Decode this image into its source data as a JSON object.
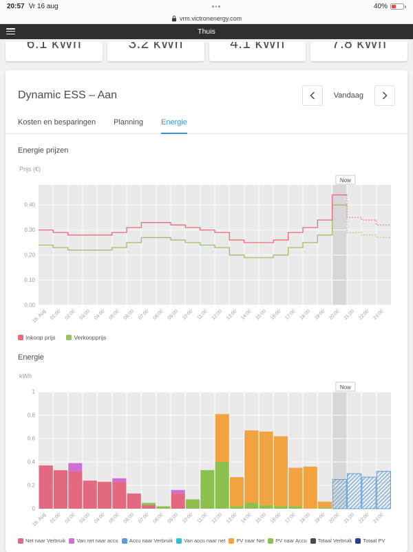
{
  "status_bar": {
    "time": "20:57",
    "date": "Vr 16 aug",
    "battery_percent": "40%"
  },
  "browser": {
    "url": "vrm.victronenergy.com"
  },
  "navbar": {
    "title": "Thuis"
  },
  "summary_cards": [
    {
      "value": "6.1 kWh"
    },
    {
      "value": "3.2 kWh"
    },
    {
      "value": "4.1 kWh"
    },
    {
      "value": "7.8 kWh"
    }
  ],
  "page": {
    "title": "Dynamic ESS – Aan",
    "date_nav_label": "Vandaag",
    "tabs": [
      {
        "label": "Kosten en besparingen",
        "active": false
      },
      {
        "label": "Planning",
        "active": false
      },
      {
        "label": "Energie",
        "active": true
      }
    ]
  },
  "chart_data": [
    {
      "type": "line",
      "step": true,
      "title": "Energie prijzen",
      "ylabel": "Prijs (€)",
      "background": "#eaeaea",
      "now_band_color": "#d7d7d7",
      "now_index": 20,
      "now_label": "Now",
      "ylim": [
        0,
        0.48
      ],
      "yticks": [
        0,
        0.1,
        0.2,
        0.3,
        0.4
      ],
      "ytick_labels": [
        "0.00",
        "0.10",
        "0.20",
        "0.30",
        "0.40"
      ],
      "x": [
        "16. Aug",
        "01:00",
        "02:00",
        "03:00",
        "04:00",
        "05:00",
        "06:00",
        "07:00",
        "08:00",
        "09:00",
        "10:00",
        "11:00",
        "12:00",
        "13:00",
        "14:00",
        "15:00",
        "16:00",
        "17:00",
        "18:00",
        "19:00",
        "20:00",
        "21:00",
        "22:00",
        "23:00"
      ],
      "series": [
        {
          "name": "Inkoop prijs",
          "color": "#ee6a7a",
          "values": [
            0.3,
            0.29,
            0.28,
            0.28,
            0.28,
            0.29,
            0.31,
            0.33,
            0.33,
            0.32,
            0.31,
            0.3,
            0.29,
            0.26,
            0.25,
            0.25,
            0.26,
            0.29,
            0.31,
            0.34,
            0.44,
            0.35,
            0.34,
            0.32
          ]
        },
        {
          "name": "Verkoopprijs",
          "color": "#9dc263",
          "values": [
            0.24,
            0.23,
            0.22,
            0.22,
            0.22,
            0.23,
            0.25,
            0.27,
            0.27,
            0.26,
            0.25,
            0.24,
            0.23,
            0.2,
            0.19,
            0.19,
            0.2,
            0.23,
            0.25,
            0.28,
            0.4,
            0.29,
            0.28,
            0.27
          ]
        }
      ],
      "legend": [
        {
          "name": "Inkoop prijs",
          "color": "#ee6a7a"
        },
        {
          "name": "Verkoopprijs",
          "color": "#9dc263"
        }
      ]
    },
    {
      "type": "bar",
      "title": "Energie",
      "ylabel": "kWh",
      "background": "#eaeaea",
      "now_band_color": "#d7d7d7",
      "now_index": 20,
      "now_label": "Now",
      "ylim": [
        0,
        1
      ],
      "yticks": [
        0,
        0.2,
        0.4,
        0.6,
        0.8,
        1
      ],
      "ytick_labels": [
        "0",
        "0.2",
        "0.4",
        "0.6",
        "0.8",
        "1"
      ],
      "x": [
        "16. Aug",
        "01:00",
        "02:00",
        "03:00",
        "04:00",
        "05:00",
        "06:00",
        "07:00",
        "08:00",
        "09:00",
        "10:00",
        "11:00",
        "12:00",
        "13:00",
        "14:00",
        "15:00",
        "16:00",
        "17:00",
        "18:00",
        "19:00",
        "20:00",
        "21:00",
        "22:00",
        "23:00"
      ],
      "stack_order": [
        0,
        1,
        2,
        3,
        5,
        4
      ],
      "series": [
        {
          "name": "Net naar Verbruik",
          "color": "#e2697f",
          "values": [
            0.37,
            0.33,
            0.32,
            0.24,
            0.23,
            0.23,
            0.13,
            0.03,
            0,
            0.13,
            0,
            0,
            0,
            0,
            0,
            0,
            0,
            0,
            0,
            0,
            0,
            0,
            0,
            0
          ]
        },
        {
          "name": "Van net naar accu",
          "color": "#cd6fd4",
          "values": [
            0,
            0,
            0.07,
            0,
            0,
            0.03,
            0,
            0,
            0,
            0.03,
            0,
            0,
            0,
            0,
            0,
            0,
            0,
            0,
            0,
            0,
            0,
            0,
            0,
            0
          ]
        },
        {
          "name": "Accu naar Verbruik",
          "color": "#5e9fd6",
          "values": [
            0,
            0,
            0,
            0,
            0,
            0,
            0,
            0,
            0,
            0,
            0,
            0,
            0,
            0,
            0,
            0,
            0,
            0,
            0,
            0,
            0.25,
            0.3,
            0.27,
            0.32
          ]
        },
        {
          "name": "Van accu naar net",
          "color": "#2dbfd4",
          "values": [
            0,
            0,
            0,
            0,
            0,
            0,
            0,
            0,
            0,
            0,
            0,
            0,
            0,
            0,
            0,
            0,
            0,
            0,
            0,
            0,
            0,
            0,
            0,
            0
          ]
        },
        {
          "name": "PV naar Net",
          "color": "#f0a33f",
          "values": [
            0,
            0,
            0,
            0,
            0,
            0,
            0,
            0,
            0,
            0,
            0,
            0,
            0.41,
            0.25,
            0.62,
            0.63,
            0.6,
            0.33,
            0.36,
            0.05,
            0,
            0,
            0,
            0
          ]
        },
        {
          "name": "PV naar Accu",
          "color": "#8cc152",
          "values": [
            0,
            0,
            0,
            0,
            0,
            0,
            0,
            0.02,
            0.02,
            0,
            0.08,
            0.33,
            0.4,
            0.02,
            0.05,
            0.03,
            0.02,
            0.02,
            0,
            0.01,
            0,
            0,
            0,
            0
          ]
        }
      ],
      "legend": [
        {
          "name": "Net naar Verbruik",
          "color": "#e2697f"
        },
        {
          "name": "Van net naar accu",
          "color": "#cd6fd4"
        },
        {
          "name": "Accu naar Verbruik",
          "color": "#5e9fd6"
        },
        {
          "name": "Van accu naar net",
          "color": "#2dbfd4"
        },
        {
          "name": "PV naar Net",
          "color": "#f0a33f"
        },
        {
          "name": "PV naar Accu",
          "color": "#8cc152"
        },
        {
          "name": "Totaal Verbruik",
          "color": "#4a4a4a"
        },
        {
          "name": "Totaal PV",
          "color": "#2a3f90"
        }
      ]
    }
  ]
}
